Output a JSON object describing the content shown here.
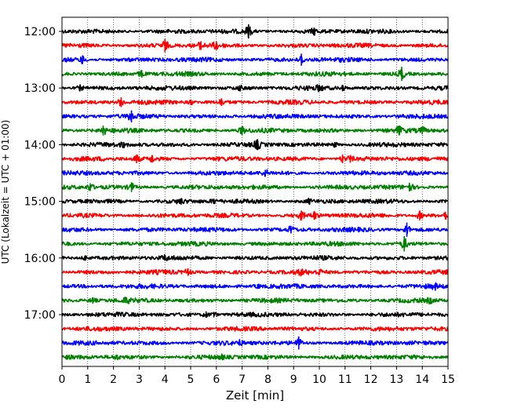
{
  "chart_data": {
    "type": "line",
    "title": "",
    "xlabel": "Zeit  [min]",
    "ylabel": "UTC (Lokalzeit = UTC + 01:00)",
    "xlim": [
      0,
      15
    ],
    "x_ticks": [
      "0",
      "1",
      "2",
      "3",
      "4",
      "5",
      "6",
      "7",
      "8",
      "9",
      "10",
      "11",
      "12",
      "13",
      "14",
      "15"
    ],
    "y_ticks": [
      "12:00",
      "13:00",
      "14:00",
      "15:00",
      "16:00",
      "17:00"
    ],
    "grid": "vertical dotted",
    "trace_colors": [
      "#000000",
      "#ff0000",
      "#0000ff",
      "#008000"
    ],
    "rows": [
      {
        "start": "12:00",
        "color": "#000000",
        "spikes": [
          {
            "x": 7.25,
            "amp": 1.3
          },
          {
            "x": 9.8,
            "amp": 0.7
          }
        ]
      },
      {
        "start": "12:15",
        "color": "#ff0000",
        "spikes": [
          {
            "x": 4.0,
            "amp": 1.2
          },
          {
            "x": 5.4,
            "amp": 0.8
          },
          {
            "x": 6.0,
            "amp": 0.8
          }
        ]
      },
      {
        "start": "12:30",
        "color": "#0000ff",
        "spikes": [
          {
            "x": 0.8,
            "amp": 0.8
          },
          {
            "x": 9.3,
            "amp": 1.1
          }
        ]
      },
      {
        "start": "12:45",
        "color": "#008000",
        "spikes": [
          {
            "x": 3.1,
            "amp": 0.7
          },
          {
            "x": 13.2,
            "amp": 1.3
          }
        ]
      },
      {
        "start": "13:00",
        "color": "#000000",
        "spikes": [
          {
            "x": 0.7,
            "amp": 0.6
          },
          {
            "x": 6.9,
            "amp": 0.5
          },
          {
            "x": 10.0,
            "amp": 0.6
          },
          {
            "x": 10.9,
            "amp": 0.6
          }
        ]
      },
      {
        "start": "13:15",
        "color": "#ff0000",
        "spikes": [
          {
            "x": 2.3,
            "amp": 0.9
          },
          {
            "x": 5.0,
            "amp": 0.5
          },
          {
            "x": 6.2,
            "amp": 0.7
          }
        ]
      },
      {
        "start": "13:30",
        "color": "#0000ff",
        "spikes": [
          {
            "x": 2.7,
            "amp": 1.1
          }
        ]
      },
      {
        "start": "13:45",
        "color": "#008000",
        "spikes": [
          {
            "x": 1.6,
            "amp": 0.9
          },
          {
            "x": 7.0,
            "amp": 0.8
          },
          {
            "x": 13.1,
            "amp": 0.9
          },
          {
            "x": 14.0,
            "amp": 0.7
          }
        ]
      },
      {
        "start": "14:00",
        "color": "#000000",
        "spikes": [
          {
            "x": 2.4,
            "amp": 0.5
          },
          {
            "x": 7.6,
            "amp": 1.0
          },
          {
            "x": 10.6,
            "amp": 0.5
          }
        ]
      },
      {
        "start": "14:15",
        "color": "#ff0000",
        "spikes": [
          {
            "x": 2.9,
            "amp": 0.8
          },
          {
            "x": 3.5,
            "amp": 0.7
          },
          {
            "x": 10.9,
            "amp": 0.8
          },
          {
            "x": 11.2,
            "amp": 0.7
          }
        ]
      },
      {
        "start": "14:30",
        "color": "#0000ff",
        "spikes": [
          {
            "x": 7.9,
            "amp": 0.6
          }
        ]
      },
      {
        "start": "14:45",
        "color": "#008000",
        "spikes": [
          {
            "x": 1.1,
            "amp": 0.7
          },
          {
            "x": 2.7,
            "amp": 0.9
          },
          {
            "x": 13.5,
            "amp": 0.8
          }
        ]
      },
      {
        "start": "15:00",
        "color": "#000000",
        "spikes": [
          {
            "x": 4.6,
            "amp": 0.5
          },
          {
            "x": 5.9,
            "amp": 0.5
          },
          {
            "x": 9.6,
            "amp": 0.5
          }
        ]
      },
      {
        "start": "15:15",
        "color": "#ff0000",
        "spikes": [
          {
            "x": 9.3,
            "amp": 0.9
          },
          {
            "x": 9.8,
            "amp": 0.8
          },
          {
            "x": 13.9,
            "amp": 0.9
          },
          {
            "x": 14.9,
            "amp": 0.7
          }
        ]
      },
      {
        "start": "15:30",
        "color": "#0000ff",
        "spikes": [
          {
            "x": 8.9,
            "amp": 0.7
          },
          {
            "x": 13.4,
            "amp": 1.3
          }
        ]
      },
      {
        "start": "15:45",
        "color": "#008000",
        "spikes": [
          {
            "x": 13.3,
            "amp": 1.4
          }
        ]
      },
      {
        "start": "16:00",
        "color": "#000000",
        "spikes": [
          {
            "x": 0.9,
            "amp": 0.5
          },
          {
            "x": 4.0,
            "amp": 0.5
          }
        ]
      },
      {
        "start": "16:15",
        "color": "#ff0000",
        "spikes": [
          {
            "x": 4.9,
            "amp": 0.7
          },
          {
            "x": 9.3,
            "amp": 0.5
          },
          {
            "x": 10.0,
            "amp": 0.5
          }
        ]
      },
      {
        "start": "16:30",
        "color": "#0000ff",
        "spikes": [
          {
            "x": 7.6,
            "amp": 0.4
          },
          {
            "x": 14.5,
            "amp": 0.5
          }
        ]
      },
      {
        "start": "16:45",
        "color": "#008000",
        "spikes": [
          {
            "x": 1.2,
            "amp": 0.6
          },
          {
            "x": 2.5,
            "amp": 0.5
          },
          {
            "x": 14.3,
            "amp": 0.5
          }
        ]
      },
      {
        "start": "17:00",
        "color": "#000000",
        "spikes": [
          {
            "x": 5.6,
            "amp": 0.6
          },
          {
            "x": 5.9,
            "amp": 0.5
          }
        ]
      },
      {
        "start": "17:15",
        "color": "#ff0000",
        "spikes": []
      },
      {
        "start": "17:30",
        "color": "#0000ff",
        "spikes": [
          {
            "x": 6.9,
            "amp": 0.5
          },
          {
            "x": 9.2,
            "amp": 1.2
          }
        ]
      },
      {
        "start": "17:45",
        "color": "#008000",
        "spikes": [
          {
            "x": 2.1,
            "amp": 0.4
          },
          {
            "x": 6.2,
            "amp": 0.4
          }
        ]
      }
    ]
  }
}
